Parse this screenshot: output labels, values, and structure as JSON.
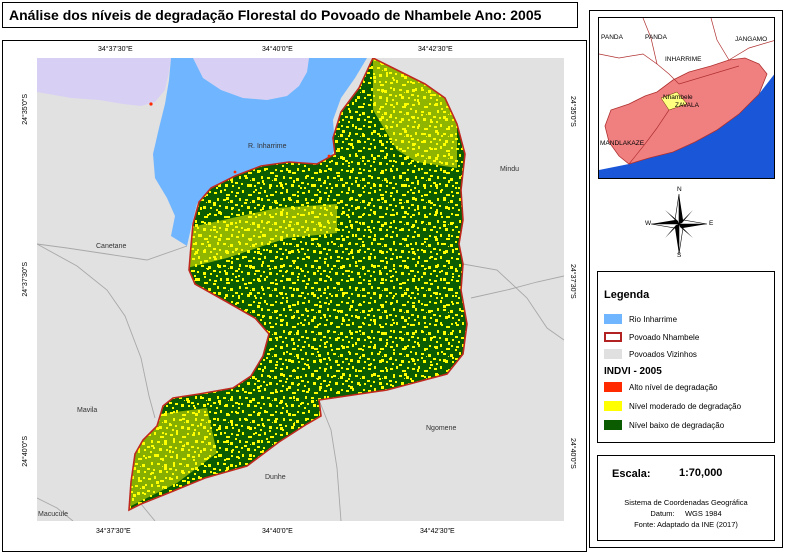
{
  "title": "Análise dos níveis de degradação Florestal do Povoado de Nhambele Ano: 2005",
  "coords": {
    "top": [
      "34°37'30\"E",
      "34°40'0\"E",
      "34°42'30\"E"
    ],
    "bottom": [
      "34°37'30\"E",
      "34°40'0\"E",
      "34°42'30\"E"
    ],
    "left": [
      "24°35'0\"S",
      "24°37'30\"S",
      "24°40'0\"S"
    ],
    "right": [
      "24°35'0\"S",
      "24°37'30\"S",
      "24°40'0\"S"
    ]
  },
  "places": {
    "river": "R. Inharrime",
    "mindu": "Mindu",
    "canetane": "Canetane",
    "mavila": "Mavila",
    "ngomene": "Ngomene",
    "dunhe": "Dunhe",
    "macucule": "Macucule"
  },
  "inset": {
    "labels": [
      "PANDA",
      "PANDA",
      "JANGAMO",
      "INHARRIME",
      "Nhambele",
      "ZAVALA",
      "MANDLAKAZE"
    ]
  },
  "compass": {
    "n": "N",
    "s": "S",
    "e": "E",
    "w": "W"
  },
  "legend": {
    "title": "Legenda",
    "items": [
      {
        "label": "Rio Inharrime",
        "color": "#70b5ff",
        "border": "#70b5ff"
      },
      {
        "label": "Povoado Nhambele",
        "color": "#ffffff",
        "border": "#b22222"
      },
      {
        "label": "Povoados Vizinhos",
        "color": "#e0e0e0",
        "border": "#e0e0e0"
      }
    ],
    "indvi_title": "INDVI - 2005",
    "indvi_items": [
      {
        "label": "Alto nível de degradação",
        "color": "#ff2a00"
      },
      {
        "label": "Nível moderado de degradação",
        "color": "#ffff00"
      },
      {
        "label": "Nível baixo de degradação",
        "color": "#0b5c00"
      }
    ]
  },
  "scale": {
    "label": "Escala:",
    "value": "1:70,000",
    "crs": "Sistema de Coordenadas Geográfica",
    "datum": "Datum:     WGS 1984",
    "source": "Fonte: Adaptado da INE (2017)"
  },
  "colors": {
    "background": "#e1e1e1",
    "river": "#70b5ff",
    "neighbor_lilac": "#d8d0f4",
    "boundary": "#c0281e",
    "forest_low": "#0b5c00",
    "forest_moderate": "#ffff00",
    "inset_district": "#f08080",
    "inset_sea": "#1a56d8"
  }
}
